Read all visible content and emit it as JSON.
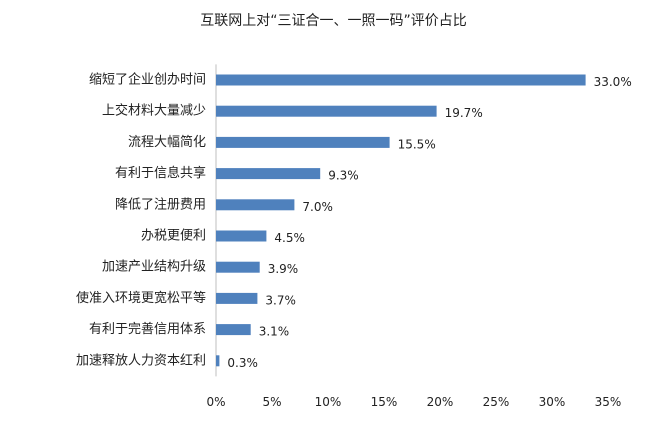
{
  "chart_data": {
    "type": "bar",
    "orientation": "horizontal",
    "title": "互联网上对“三证合一、一照一码”评价占比",
    "categories": [
      "缩短了企业创办时间",
      "上交材料大量减少",
      "流程大幅简化",
      "有利于信息共享",
      "降低了注册费用",
      "办税更便利",
      "加速产业结构升级",
      "使准入环境更宽松平等",
      "有利于完善信用体系",
      "加速释放人力资本红利"
    ],
    "values": [
      33.0,
      19.7,
      15.5,
      9.3,
      7.0,
      4.5,
      3.9,
      3.7,
      3.1,
      0.3
    ],
    "value_labels": [
      "33.0%",
      "19.7%",
      "15.5%",
      "9.3%",
      "7.0%",
      "4.5%",
      "3.9%",
      "3.7%",
      "3.1%",
      "0.3%"
    ],
    "x_ticks": [
      0,
      5,
      10,
      15,
      20,
      25,
      30,
      35
    ],
    "x_tick_labels": [
      "0%",
      "5%",
      "10%",
      "15%",
      "20%",
      "25%",
      "30%",
      "35%"
    ],
    "xlim": [
      0,
      35
    ],
    "bar_color": "#4F81BD",
    "grid": false,
    "legend": "none"
  }
}
